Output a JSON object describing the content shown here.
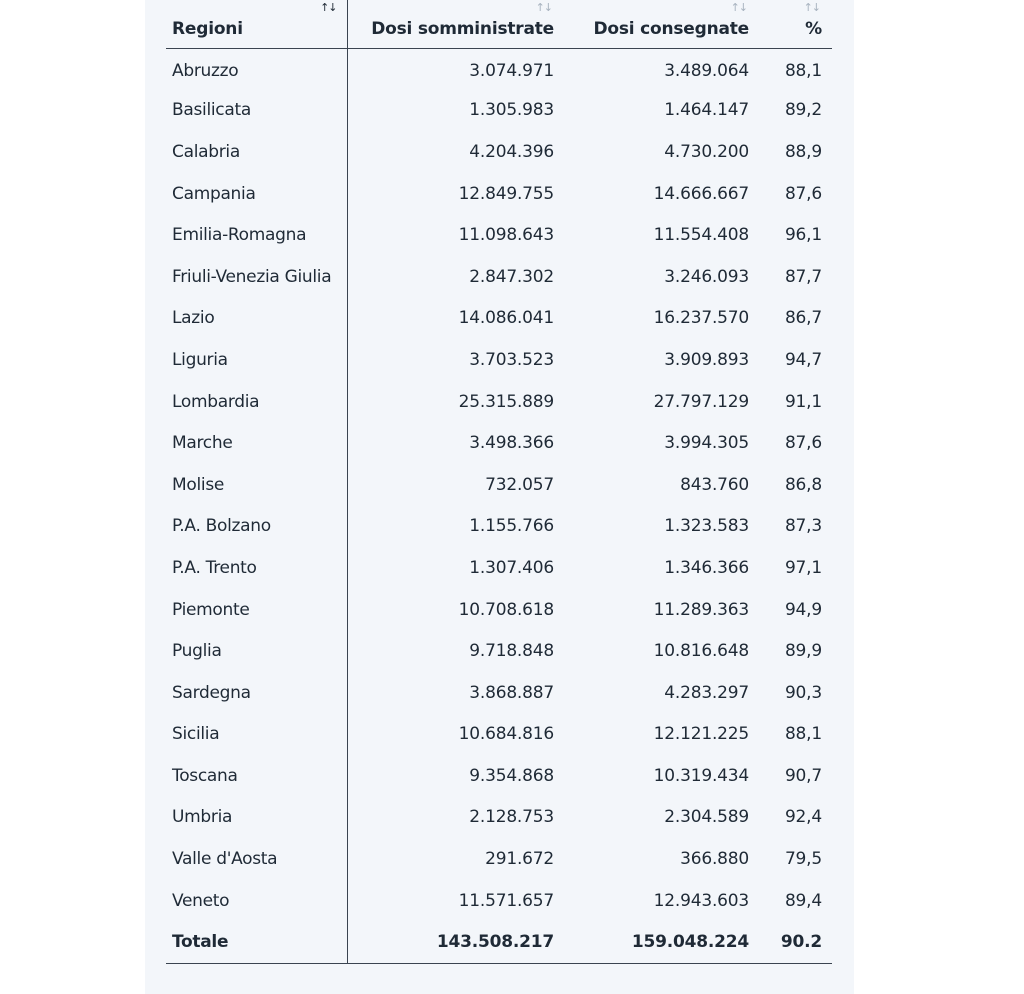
{
  "table": {
    "headers": {
      "region": "Regioni",
      "administered": "Dosi somministrate",
      "delivered": "Dosi consegnate",
      "percent": "%"
    },
    "sort_icon": "↑↓",
    "rows": [
      {
        "region": "Abruzzo",
        "administered": "3.074.971",
        "delivered": "3.489.064",
        "percent": "88,1"
      },
      {
        "region": "Basilicata",
        "administered": "1.305.983",
        "delivered": "1.464.147",
        "percent": "89,2"
      },
      {
        "region": "Calabria",
        "administered": "4.204.396",
        "delivered": "4.730.200",
        "percent": "88,9"
      },
      {
        "region": "Campania",
        "administered": "12.849.755",
        "delivered": "14.666.667",
        "percent": "87,6"
      },
      {
        "region": "Emilia-Romagna",
        "administered": "11.098.643",
        "delivered": "11.554.408",
        "percent": "96,1"
      },
      {
        "region": "Friuli-Venezia Giulia",
        "administered": "2.847.302",
        "delivered": "3.246.093",
        "percent": "87,7"
      },
      {
        "region": "Lazio",
        "administered": "14.086.041",
        "delivered": "16.237.570",
        "percent": "86,7"
      },
      {
        "region": "Liguria",
        "administered": "3.703.523",
        "delivered": "3.909.893",
        "percent": "94,7"
      },
      {
        "region": "Lombardia",
        "administered": "25.315.889",
        "delivered": "27.797.129",
        "percent": "91,1"
      },
      {
        "region": "Marche",
        "administered": "3.498.366",
        "delivered": "3.994.305",
        "percent": "87,6"
      },
      {
        "region": "Molise",
        "administered": "732.057",
        "delivered": "843.760",
        "percent": "86,8"
      },
      {
        "region": "P.A. Bolzano",
        "administered": "1.155.766",
        "delivered": "1.323.583",
        "percent": "87,3"
      },
      {
        "region": "P.A. Trento",
        "administered": "1.307.406",
        "delivered": "1.346.366",
        "percent": "97,1"
      },
      {
        "region": "Piemonte",
        "administered": "10.708.618",
        "delivered": "11.289.363",
        "percent": "94,9"
      },
      {
        "region": "Puglia",
        "administered": "9.718.848",
        "delivered": "10.816.648",
        "percent": "89,9"
      },
      {
        "region": "Sardegna",
        "administered": "3.868.887",
        "delivered": "4.283.297",
        "percent": "90,3"
      },
      {
        "region": "Sicilia",
        "administered": "10.684.816",
        "delivered": "12.121.225",
        "percent": "88,1"
      },
      {
        "region": "Toscana",
        "administered": "9.354.868",
        "delivered": "10.319.434",
        "percent": "90,7"
      },
      {
        "region": "Umbria",
        "administered": "2.128.753",
        "delivered": "2.304.589",
        "percent": "92,4"
      },
      {
        "region": "Valle d'Aosta",
        "administered": "291.672",
        "delivered": "366.880",
        "percent": "79,5"
      },
      {
        "region": "Veneto",
        "administered": "11.571.657",
        "delivered": "12.943.603",
        "percent": "89,4"
      }
    ],
    "total": {
      "region": "Totale",
      "administered": "143.508.217",
      "delivered": "159.048.224",
      "percent": "90.2"
    }
  },
  "colors": {
    "panel_bg": "#f3f6fa",
    "text": "#1f2a36",
    "sort_inactive": "#a8b3bf",
    "rule": "#3a4450"
  }
}
